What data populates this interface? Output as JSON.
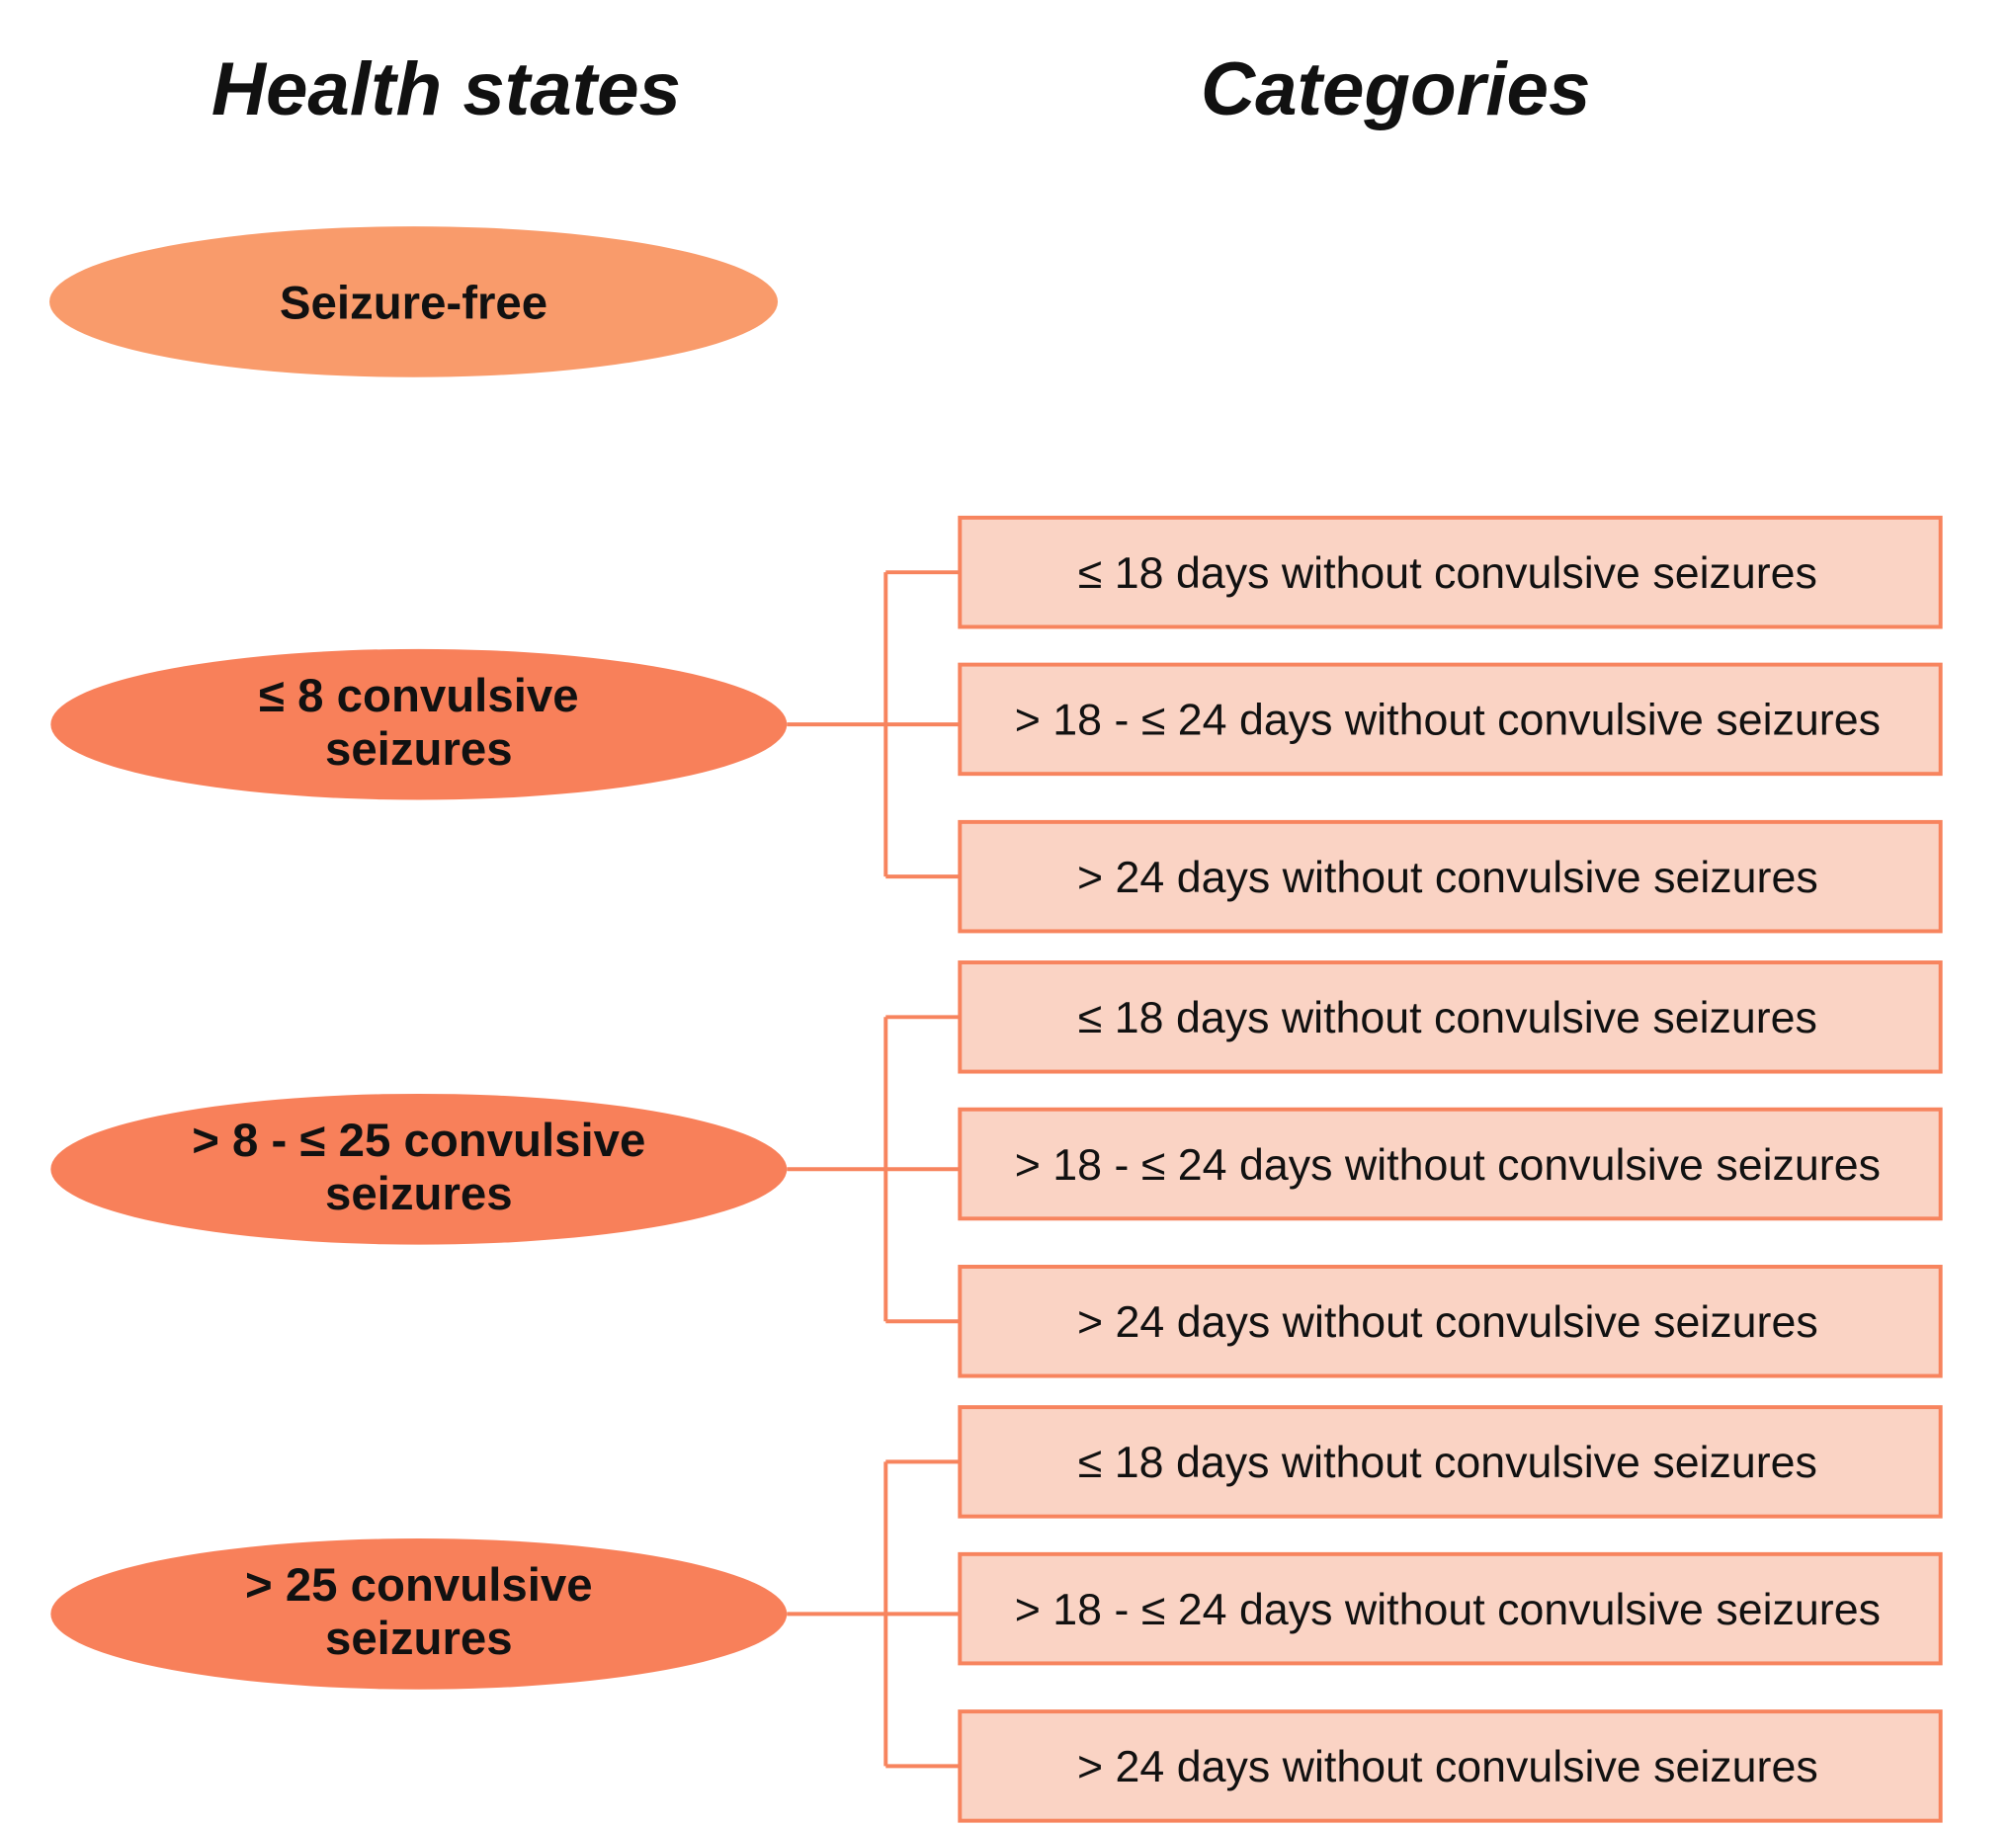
{
  "headers": {
    "left": "Health states",
    "right": "Categories"
  },
  "colors": {
    "seizure_free_fill": "#F99B6B",
    "state_fill": "#F8805A",
    "box_fill": "#FAD3C4",
    "box_stroke": "#F7845E"
  },
  "states": [
    {
      "lines": [
        "Seizure-free"
      ]
    },
    {
      "lines": [
        "≤ 8 convulsive",
        "seizures"
      ]
    },
    {
      "lines": [
        "> 8 - ≤ 25 convulsive",
        "seizures"
      ]
    },
    {
      "lines": [
        "> 25 convulsive",
        "seizures"
      ]
    }
  ],
  "groups": [
    {
      "categories": [
        "≤ 18 days without  convulsive seizures",
        "> 18 - ≤ 24 days without  convulsive seizures",
        "> 24 days without  convulsive seizures"
      ]
    },
    {
      "categories": [
        "≤ 18 days without  convulsive seizures",
        "> 18 - ≤ 24 days without  convulsive seizures",
        "> 24 days without  convulsive seizures"
      ]
    },
    {
      "categories": [
        "≤ 18 days without  convulsive seizures",
        "> 18 - ≤ 24 days without  convulsive seizures",
        "> 24 days without  convulsive seizures"
      ]
    }
  ]
}
